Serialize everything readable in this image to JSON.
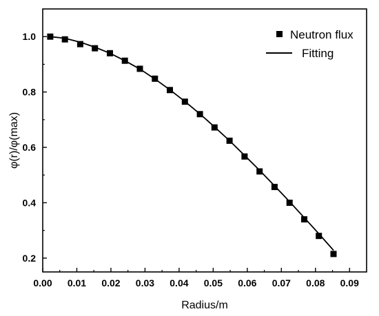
{
  "chart_data": {
    "type": "scatter",
    "xlabel": "Radius/m",
    "ylabel": "φ(r)/φ(max)",
    "xlim": [
      0.0,
      0.095
    ],
    "ylim": [
      0.15,
      1.1
    ],
    "x_ticks": [
      0.0,
      0.01,
      0.02,
      0.03,
      0.04,
      0.05,
      0.06,
      0.07,
      0.08,
      0.09
    ],
    "x_tick_labels": [
      "0.00",
      "0.01",
      "0.02",
      "0.03",
      "0.04",
      "0.05",
      "0.06",
      "0.07",
      "0.08",
      "0.09"
    ],
    "y_ticks": [
      0.2,
      0.4,
      0.6,
      0.8,
      1.0
    ],
    "y_tick_labels": [
      "0.2",
      "0.4",
      "0.6",
      "0.8",
      "1.0"
    ],
    "grid": false,
    "legend_position": "top-right",
    "series": [
      {
        "name": "Neutron flux",
        "kind": "scatter",
        "marker": "square",
        "color": "#000000",
        "x": [
          0.0022,
          0.0065,
          0.011,
          0.0153,
          0.0197,
          0.0241,
          0.0285,
          0.0329,
          0.0373,
          0.0417,
          0.0461,
          0.0504,
          0.0548,
          0.0592,
          0.0636,
          0.068,
          0.0724,
          0.0767,
          0.081,
          0.0853
        ],
        "y": [
          1.0,
          0.99,
          0.973,
          0.958,
          0.94,
          0.913,
          0.884,
          0.848,
          0.807,
          0.765,
          0.72,
          0.672,
          0.624,
          0.567,
          0.513,
          0.457,
          0.4,
          0.34,
          0.28,
          0.215
        ]
      },
      {
        "name": "Fitting",
        "kind": "line",
        "color": "#000000",
        "x": [
          0.0022,
          0.0065,
          0.011,
          0.0153,
          0.0197,
          0.0241,
          0.0285,
          0.0329,
          0.0373,
          0.0417,
          0.0461,
          0.0504,
          0.0548,
          0.0592,
          0.0636,
          0.068,
          0.0724,
          0.0767,
          0.081,
          0.0853
        ],
        "y": [
          1.0,
          0.994,
          0.98,
          0.962,
          0.94,
          0.913,
          0.883,
          0.847,
          0.808,
          0.766,
          0.721,
          0.674,
          0.624,
          0.571,
          0.517,
          0.461,
          0.404,
          0.346,
          0.288,
          0.228
        ]
      }
    ]
  }
}
